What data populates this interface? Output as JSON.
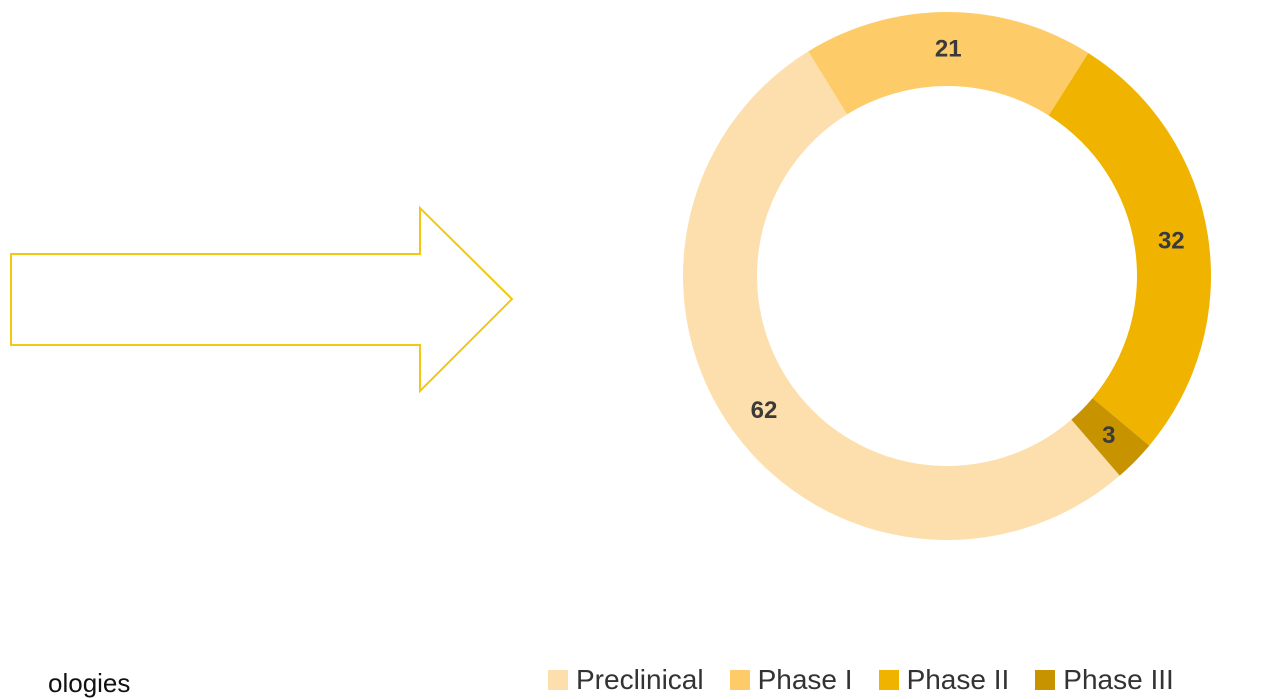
{
  "left_caption": "ologies",
  "colors": {
    "arrow_stroke": "#F2C811",
    "preclinical": "#FDDFAD",
    "phase1": "#FECB69",
    "phase2": "#F0B400",
    "phase3": "#C79400"
  },
  "chart_data": {
    "type": "pie",
    "donut": true,
    "categories": [
      "Preclinical",
      "Phase I",
      "Phase II",
      "Phase III"
    ],
    "values": [
      62,
      21,
      32,
      3
    ],
    "data_labels": [
      "62",
      "21",
      "32",
      "3"
    ],
    "legend_position": "bottom",
    "title": ""
  }
}
